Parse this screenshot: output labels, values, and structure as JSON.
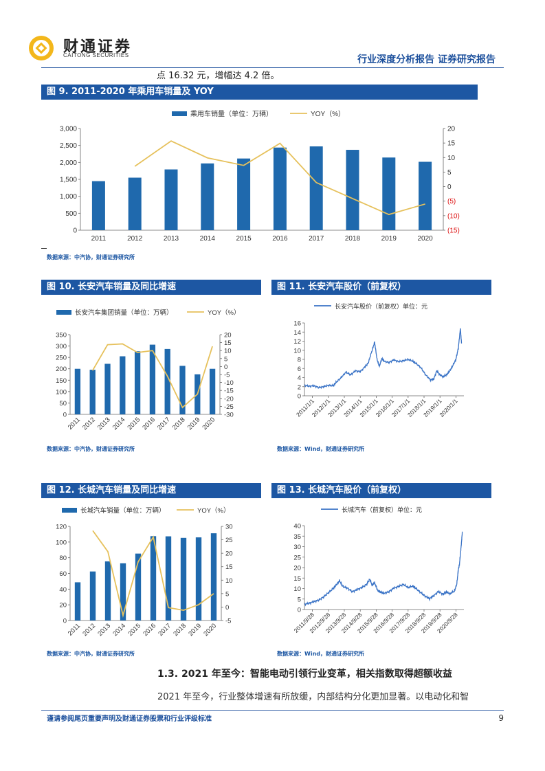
{
  "header": {
    "logo_cn": "财通证券",
    "logo_en": "CAITONG SECURITIES",
    "report_title": "行业深度分析报告 证券研究报告"
  },
  "intro_text": "点 16.32 元，增幅达 4.2 倍。",
  "colors": {
    "bar": "#1f69ad",
    "line": "#e6c15c",
    "price_line": "#3a73c6",
    "header_blue": "#1d57a3"
  },
  "figures": {
    "fig9": {
      "title": "图 9. 2011-2020 年乘用车销量及 YOY",
      "source": "数据来源：中汽协，财通证券研究所"
    },
    "fig10": {
      "title": "图 10. 长安汽车销量及同比增速",
      "source": "数据来源：中汽协，财通证券研究所"
    },
    "fig11": {
      "title": "图 11. 长安汽车股价（前复权）",
      "source": "数据来源：Wind，财通证券研究所"
    },
    "fig12": {
      "title": "图 12. 长城汽车销量及同比增速",
      "source": "数据来源：中汽协，财通证券研究所"
    },
    "fig13": {
      "title": "图 13. 长城汽车股价（前复权）",
      "source": "数据来源：Wind，财通证券研究所"
    }
  },
  "section_title": "1.3. 2021 年至今：智能电动引领行业变革，相关指数取得超额收益",
  "paragraph": "2021 年至今，行业整体增速有所放缓，内部结构分化更加显著。以电动化和智",
  "footer": {
    "disclaimer": "谨请参阅尾页重要声明及财通证券股票和行业评级标准",
    "page_number": "9"
  },
  "chart_data": [
    {
      "id": "fig9",
      "type": "bar+line",
      "categories": [
        "2011",
        "2012",
        "2013",
        "2014",
        "2015",
        "2016",
        "2017",
        "2018",
        "2019",
        "2020"
      ],
      "series": [
        {
          "name": "乘用车销量（单位：万辆）",
          "type": "bar",
          "axis": "left",
          "values": [
            1447,
            1550,
            1793,
            1970,
            2115,
            2438,
            2472,
            2371,
            2144,
            2018
          ]
        },
        {
          "name": "YOY（%）",
          "type": "line",
          "axis": "right",
          "values": [
            null,
            7,
            15.7,
            9.9,
            7.3,
            14.9,
            1.4,
            -4.1,
            -9.6,
            -6
          ]
        }
      ],
      "left_ticks": [
        "0",
        "500",
        "1,000",
        "1,500",
        "2,000",
        "2,500",
        "3,000"
      ],
      "ylim_left": [
        0,
        3000
      ],
      "right_ticks": [
        "(15)",
        "(10)",
        "(5)",
        "0",
        "5",
        "10",
        "15",
        "20"
      ],
      "ylim_right": [
        -15,
        20
      ]
    },
    {
      "id": "fig10",
      "type": "bar+line",
      "categories": [
        "2011",
        "2012",
        "2013",
        "2014",
        "2015",
        "2016",
        "2017",
        "2018",
        "2019",
        "2020"
      ],
      "series": [
        {
          "name": "长安汽车集团销量（单位：万辆）",
          "type": "bar",
          "axis": "left",
          "values": [
            200,
            196,
            222,
            255,
            277,
            306,
            287,
            213,
            176,
            200
          ]
        },
        {
          "name": "YOY（%）",
          "type": "line",
          "axis": "right",
          "values": [
            null,
            -2.5,
            13.7,
            14.2,
            8.8,
            10,
            -6.1,
            -25.7,
            -17.3,
            12.7
          ]
        }
      ],
      "left_ticks": [
        "0",
        "50",
        "100",
        "150",
        "200",
        "250",
        "300",
        "350"
      ],
      "ylim_left": [
        0,
        350
      ],
      "right_ticks": [
        "-30",
        "-25",
        "-20",
        "-15",
        "-10",
        "-5",
        "0",
        "5",
        "10",
        "15",
        "20"
      ],
      "ylim_right": [
        -30,
        20
      ]
    },
    {
      "id": "fig11",
      "type": "line",
      "series_name": "长安汽车股价（前复权）单位：元",
      "x_ticks": [
        "2011/1/1",
        "2012/1/1",
        "2013/1/1",
        "2014/1/1",
        "2015/1/1",
        "2016/1/1",
        "2017/1/1",
        "2018/1/1",
        "2019/1/1",
        "2020/1/1"
      ],
      "y_ticks": [
        "0",
        "2",
        "4",
        "6",
        "8",
        "10",
        "12",
        "14",
        "16"
      ],
      "ylim": [
        0,
        16
      ],
      "points": [
        [
          2011.0,
          2.3
        ],
        [
          2011.3,
          2.1
        ],
        [
          2011.6,
          2.2
        ],
        [
          2011.9,
          1.8
        ],
        [
          2012.2,
          2.0
        ],
        [
          2012.5,
          2.3
        ],
        [
          2012.8,
          2.2
        ],
        [
          2013.0,
          3.0
        ],
        [
          2013.3,
          4.0
        ],
        [
          2013.6,
          5.2
        ],
        [
          2013.9,
          4.6
        ],
        [
          2014.2,
          5.5
        ],
        [
          2014.5,
          5.3
        ],
        [
          2014.8,
          6.4
        ],
        [
          2015.0,
          7.2
        ],
        [
          2015.2,
          9.5
        ],
        [
          2015.4,
          11.8
        ],
        [
          2015.55,
          8.0
        ],
        [
          2015.7,
          6.5
        ],
        [
          2015.85,
          8.2
        ],
        [
          2016.0,
          7.6
        ],
        [
          2016.3,
          7.3
        ],
        [
          2016.6,
          7.9
        ],
        [
          2016.9,
          7.5
        ],
        [
          2017.2,
          7.7
        ],
        [
          2017.5,
          8.0
        ],
        [
          2017.8,
          7.6
        ],
        [
          2018.0,
          7.1
        ],
        [
          2018.3,
          6.2
        ],
        [
          2018.6,
          4.6
        ],
        [
          2018.9,
          3.5
        ],
        [
          2019.1,
          3.6
        ],
        [
          2019.3,
          5.5
        ],
        [
          2019.5,
          4.6
        ],
        [
          2019.7,
          4.2
        ],
        [
          2019.9,
          4.6
        ],
        [
          2020.1,
          5.4
        ],
        [
          2020.3,
          6.6
        ],
        [
          2020.5,
          8.0
        ],
        [
          2020.65,
          10.5
        ],
        [
          2020.78,
          14.8
        ],
        [
          2020.85,
          11.5
        ]
      ]
    },
    {
      "id": "fig12",
      "type": "bar+line",
      "categories": [
        "2011",
        "2012",
        "2013",
        "2014",
        "2015",
        "2016",
        "2017",
        "2018",
        "2019",
        "2020"
      ],
      "series": [
        {
          "name": "长城汽车销量（单位：万辆）",
          "type": "bar",
          "axis": "left",
          "values": [
            48.7,
            62.5,
            75.4,
            73,
            85.3,
            107.5,
            107.3,
            105.3,
            106,
            111.2
          ]
        },
        {
          "name": "YOY（%）",
          "type": "line",
          "axis": "right",
          "values": [
            null,
            28.4,
            20.6,
            -3.1,
            16.8,
            26,
            -0.2,
            -1.2,
            0.9,
            5
          ]
        }
      ],
      "left_ticks": [
        "0",
        "20",
        "40",
        "60",
        "80",
        "100",
        "120"
      ],
      "ylim_left": [
        0,
        120
      ],
      "right_ticks": [
        "-5",
        "0",
        "5",
        "10",
        "15",
        "20",
        "25",
        "30"
      ],
      "ylim_right": [
        -5,
        30
      ]
    },
    {
      "id": "fig13",
      "type": "line",
      "series_name": "长城汽车（前复权）单位：元",
      "x_ticks": [
        "2011/9/28",
        "2012/9/28",
        "2013/9/28",
        "2014/9/28",
        "2015/9/28",
        "2016/9/28",
        "2017/9/28",
        "2018/9/28",
        "2019/9/28",
        "2020/9/28"
      ],
      "y_ticks": [
        "0",
        "5",
        "10",
        "15",
        "20",
        "25",
        "30",
        "35",
        "40"
      ],
      "ylim": [
        0,
        40
      ],
      "points": [
        [
          2011.0,
          2.5
        ],
        [
          2011.3,
          3.0
        ],
        [
          2011.6,
          3.8
        ],
        [
          2011.9,
          4.5
        ],
        [
          2012.2,
          6.0
        ],
        [
          2012.5,
          8.0
        ],
        [
          2012.8,
          10.0
        ],
        [
          2013.0,
          11.8
        ],
        [
          2013.2,
          13.8
        ],
        [
          2013.4,
          11.0
        ],
        [
          2013.7,
          10.2
        ],
        [
          2014.0,
          8.5
        ],
        [
          2014.3,
          9.5
        ],
        [
          2014.6,
          10.5
        ],
        [
          2014.9,
          12.0
        ],
        [
          2015.1,
          14.5
        ],
        [
          2015.25,
          11.5
        ],
        [
          2015.4,
          12.8
        ],
        [
          2015.6,
          9.0
        ],
        [
          2015.8,
          8.2
        ],
        [
          2016.0,
          7.7
        ],
        [
          2016.3,
          8.5
        ],
        [
          2016.6,
          10.2
        ],
        [
          2016.9,
          11.0
        ],
        [
          2017.2,
          12.0
        ],
        [
          2017.5,
          10.5
        ],
        [
          2017.8,
          11.2
        ],
        [
          2018.0,
          10.0
        ],
        [
          2018.3,
          8.0
        ],
        [
          2018.6,
          6.2
        ],
        [
          2018.85,
          5.2
        ],
        [
          2019.1,
          6.5
        ],
        [
          2019.4,
          8.6
        ],
        [
          2019.7,
          7.2
        ],
        [
          2019.9,
          8.5
        ],
        [
          2020.1,
          7.5
        ],
        [
          2020.4,
          8.8
        ],
        [
          2020.55,
          12.0
        ],
        [
          2020.65,
          19.0
        ],
        [
          2020.72,
          21.5
        ],
        [
          2020.8,
          28.0
        ],
        [
          2020.86,
          33.0
        ],
        [
          2020.9,
          37.0
        ]
      ]
    }
  ]
}
